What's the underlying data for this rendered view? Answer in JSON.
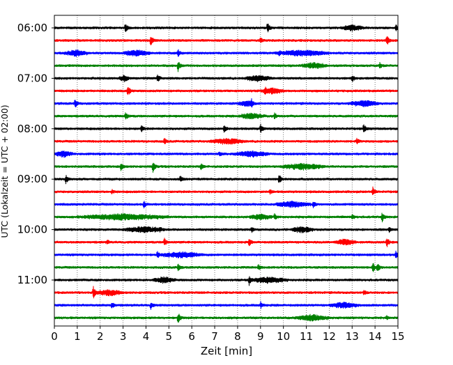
{
  "chart_data": {
    "type": "line",
    "title": "",
    "xlabel": "Zeit  [min]",
    "ylabel": "UTC (Lokalzeit = UTC + 02:00)",
    "xlim": [
      0,
      15
    ],
    "x_ticks": [
      "0",
      "1",
      "2",
      "3",
      "4",
      "5",
      "6",
      "7",
      "8",
      "9",
      "10",
      "11",
      "12",
      "13",
      "14",
      "15"
    ],
    "y_ticks": [
      "06:00",
      "07:00",
      "08:00",
      "09:00",
      "10:00",
      "11:00"
    ],
    "grid": "vertical dotted",
    "trace_colors": [
      "#000000",
      "#ff0000",
      "#0000ff",
      "#008000"
    ],
    "traces": [
      {
        "start": "06:00",
        "color": "#000000",
        "events": [
          [
            3.1,
            0.8
          ],
          [
            9.3,
            1.0
          ],
          [
            14.9,
            0.6
          ]
        ],
        "noisy": [
          [
            12.5,
            13.5
          ]
        ]
      },
      {
        "start": "06:15",
        "color": "#ff0000",
        "events": [
          [
            4.2,
            1.0
          ],
          [
            9.0,
            0.5
          ],
          [
            14.5,
            1.0
          ]
        ],
        "noisy": []
      },
      {
        "start": "06:30",
        "color": "#0000ff",
        "events": [
          [
            3.2,
            0.5
          ],
          [
            5.4,
            0.6
          ],
          [
            9.8,
            0.6
          ]
        ],
        "noisy": [
          [
            0.4,
            1.5
          ],
          [
            3.0,
            4.2
          ],
          [
            9.6,
            12.0
          ]
        ]
      },
      {
        "start": "06:45",
        "color": "#008000",
        "events": [
          [
            5.4,
            0.9
          ],
          [
            11.5,
            0.5
          ],
          [
            14.2,
            0.5
          ]
        ],
        "noisy": [
          [
            10.8,
            11.9
          ]
        ]
      },
      {
        "start": "07:00",
        "color": "#000000",
        "events": [
          [
            3.0,
            0.6
          ],
          [
            4.5,
            0.7
          ],
          [
            13.0,
            0.6
          ]
        ],
        "noisy": [
          [
            2.8,
            3.3
          ],
          [
            8.3,
            9.5
          ]
        ]
      },
      {
        "start": "07:15",
        "color": "#ff0000",
        "events": [
          [
            3.2,
            1.0
          ],
          [
            9.2,
            0.8
          ]
        ],
        "noisy": [
          [
            9.0,
            10.0
          ]
        ]
      },
      {
        "start": "07:30",
        "color": "#0000ff",
        "events": [
          [
            0.9,
            0.9
          ],
          [
            8.6,
            0.9
          ]
        ],
        "noisy": [
          [
            8.0,
            8.8
          ],
          [
            12.8,
            14.2
          ]
        ]
      },
      {
        "start": "07:45",
        "color": "#008000",
        "events": [
          [
            3.1,
            0.7
          ],
          [
            9.6,
            0.6
          ]
        ],
        "noisy": [
          [
            8.0,
            9.2
          ]
        ]
      },
      {
        "start": "08:00",
        "color": "#000000",
        "events": [
          [
            3.8,
            0.6
          ],
          [
            7.4,
            0.8
          ],
          [
            9.0,
            0.8
          ],
          [
            13.5,
            0.8
          ]
        ],
        "noisy": []
      },
      {
        "start": "08:15",
        "color": "#ff0000",
        "events": [
          [
            4.8,
            0.5
          ],
          [
            13.2,
            0.6
          ]
        ],
        "noisy": [
          [
            6.8,
            8.3
          ]
        ]
      },
      {
        "start": "08:30",
        "color": "#0000ff",
        "events": [
          [
            7.2,
            0.4
          ]
        ],
        "noisy": [
          [
            0.0,
            0.8
          ],
          [
            7.8,
            9.4
          ]
        ]
      },
      {
        "start": "08:45",
        "color": "#008000",
        "events": [
          [
            2.9,
            0.7
          ],
          [
            4.3,
            1.0
          ],
          [
            6.4,
            0.5
          ]
        ],
        "noisy": [
          [
            9.8,
            11.8
          ]
        ]
      },
      {
        "start": "09:00",
        "color": "#000000",
        "events": [
          [
            0.5,
            0.8
          ],
          [
            5.5,
            0.6
          ],
          [
            9.8,
            1.0
          ]
        ],
        "noisy": []
      },
      {
        "start": "09:15",
        "color": "#ff0000",
        "events": [
          [
            2.5,
            0.4
          ],
          [
            9.4,
            0.4
          ],
          [
            13.9,
            0.8
          ]
        ],
        "noisy": []
      },
      {
        "start": "09:30",
        "color": "#0000ff",
        "events": [
          [
            3.9,
            0.6
          ],
          [
            11.3,
            0.5
          ]
        ],
        "noisy": [
          [
            9.6,
            11.2
          ]
        ]
      },
      {
        "start": "09:45",
        "color": "#008000",
        "events": [
          [
            9.6,
            0.6
          ],
          [
            13.0,
            0.5
          ],
          [
            14.3,
            0.9
          ]
        ],
        "noisy": [
          [
            1.0,
            5.0
          ],
          [
            8.5,
            9.5
          ]
        ]
      },
      {
        "start": "10:00",
        "color": "#000000",
        "events": [
          [
            4.6,
            0.5
          ],
          [
            8.6,
            0.5
          ],
          [
            14.6,
            0.5
          ]
        ],
        "noisy": [
          [
            3.0,
            4.8
          ],
          [
            10.3,
            11.3
          ]
        ]
      },
      {
        "start": "10:15",
        "color": "#ff0000",
        "events": [
          [
            2.3,
            0.4
          ],
          [
            4.8,
            0.7
          ],
          [
            8.5,
            0.6
          ],
          [
            14.5,
            1.0
          ]
        ],
        "noisy": [
          [
            12.2,
            13.2
          ]
        ]
      },
      {
        "start": "10:30",
        "color": "#0000ff",
        "events": [
          [
            4.5,
            0.6
          ],
          [
            14.9,
            0.7
          ]
        ],
        "noisy": [
          [
            4.6,
            6.5
          ]
        ]
      },
      {
        "start": "10:45",
        "color": "#008000",
        "events": [
          [
            5.4,
            0.7
          ],
          [
            8.9,
            0.5
          ],
          [
            13.9,
            0.9
          ],
          [
            14.1,
            0.8
          ]
        ],
        "noisy": []
      },
      {
        "start": "11:00",
        "color": "#000000",
        "events": [
          [
            8.5,
            0.9
          ]
        ],
        "noisy": [
          [
            8.5,
            10.2
          ],
          [
            4.3,
            5.3
          ]
        ]
      },
      {
        "start": "11:15",
        "color": "#ff0000",
        "events": [
          [
            1.7,
            1.0
          ],
          [
            13.5,
            0.5
          ]
        ],
        "noisy": [
          [
            1.8,
            3.0
          ]
        ]
      },
      {
        "start": "11:30",
        "color": "#0000ff",
        "events": [
          [
            2.5,
            0.6
          ],
          [
            4.2,
            0.7
          ],
          [
            9.0,
            0.6
          ]
        ],
        "noisy": [
          [
            12.0,
            13.3
          ]
        ]
      },
      {
        "start": "11:45",
        "color": "#008000",
        "events": [
          [
            5.4,
            0.9
          ],
          [
            14.5,
            0.4
          ]
        ],
        "noisy": [
          [
            10.5,
            12.0
          ]
        ]
      }
    ]
  }
}
